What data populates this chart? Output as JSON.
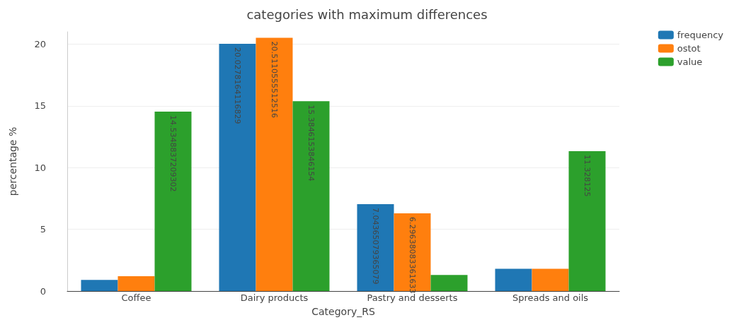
{
  "chart_data": {
    "type": "bar",
    "title": "categories with maximum differences",
    "xlabel": "Category_RS",
    "ylabel": "percentage %",
    "categories": [
      "Coffee",
      "Dairy products",
      "Pastry and desserts",
      "Spreads and oils"
    ],
    "series": [
      {
        "name": "frequency",
        "color": "#1f77b4",
        "values": [
          0.9,
          20.0278164116829,
          7.04365079365079,
          1.8
        ],
        "value_labels": [
          null,
          "20.0278164116829",
          "7.04365079365079",
          null
        ]
      },
      {
        "name": "ostot",
        "color": "#ff7f0e",
        "values": [
          1.2,
          20.5110555512516,
          6.29638083361633,
          1.8
        ],
        "value_labels": [
          null,
          "20.5110555512516",
          "6.29638083361633",
          null
        ]
      },
      {
        "name": "value",
        "color": "#2ca02c",
        "values": [
          14.5348837209302,
          15.3846153846154,
          1.3,
          11.328125
        ],
        "value_labels": [
          "14.5348837209302",
          "15.3846153846154",
          null,
          "11.328125"
        ]
      }
    ],
    "ylim": [
      0,
      21
    ],
    "yticks": [
      0,
      5,
      10,
      15,
      20
    ],
    "grid": "y",
    "legend": "top right"
  }
}
